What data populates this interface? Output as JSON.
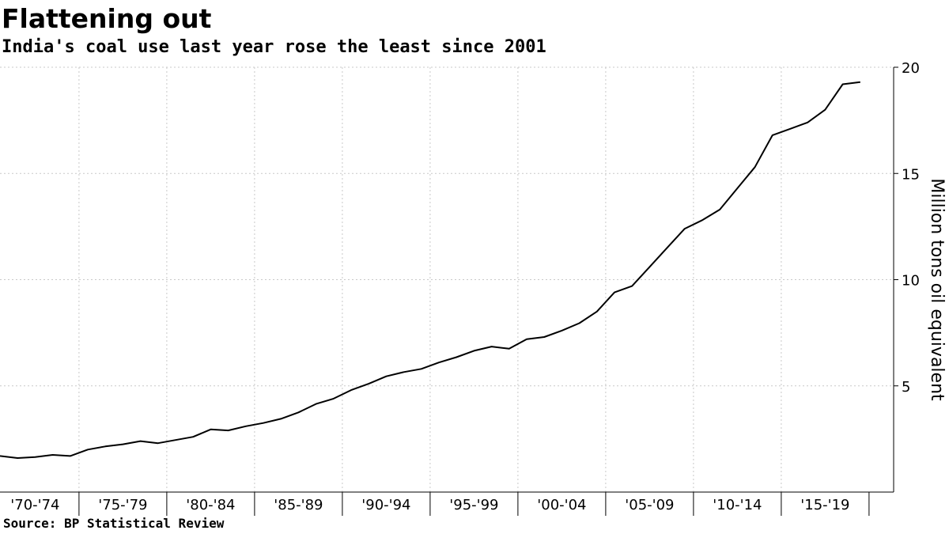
{
  "header": {
    "title": "Flattening out",
    "subtitle": "India's coal use last year rose the least since 2001"
  },
  "footer": {
    "source": "Source: BP Statistical Review"
  },
  "colors": {
    "line": "#000000",
    "grid": "#c8c8c8"
  },
  "chart_data": {
    "type": "line",
    "title": "Flattening out",
    "subtitle": "India's coal use last year rose the least since 2001",
    "xlabel": "",
    "ylabel": "Million tons oil equivalent",
    "x_range": [
      1970,
      2019
    ],
    "ylim": [
      0,
      20
    ],
    "yticks": [
      5,
      10,
      15,
      20
    ],
    "y_axis_side": "right",
    "grid": true,
    "legend": "none",
    "categories": [
      "'70-'74",
      "'75-'79",
      "'80-'84",
      "'85-'89",
      "'90-'94",
      "'95-'99",
      "'00-'04",
      "'05-'09",
      "'10-'14",
      "'15-'19"
    ],
    "series": [
      {
        "x": [
          1970,
          1971,
          1972,
          1973,
          1974,
          1975,
          1976,
          1977,
          1978,
          1979,
          1980,
          1981,
          1982,
          1983,
          1984,
          1985,
          1986,
          1987,
          1988,
          1989,
          1990,
          1991,
          1992,
          1993,
          1994,
          1995,
          1996,
          1997,
          1998,
          1999,
          2000,
          2001,
          2002,
          2003,
          2004,
          2005,
          2006,
          2007,
          2008,
          2009,
          2010,
          2011,
          2012,
          2013,
          2014,
          2015,
          2016,
          2017,
          2018,
          2019
        ],
        "values": [
          1.7,
          1.6,
          1.65,
          1.75,
          1.7,
          2.0,
          2.15,
          2.25,
          2.4,
          2.3,
          2.45,
          2.6,
          2.95,
          2.9,
          3.1,
          3.25,
          3.45,
          3.75,
          4.15,
          4.4,
          4.8,
          5.1,
          5.45,
          5.65,
          5.8,
          6.1,
          6.35,
          6.65,
          6.85,
          6.75,
          7.2,
          7.3,
          7.6,
          7.95,
          8.5,
          9.4,
          9.7,
          10.6,
          11.5,
          12.4,
          12.8,
          13.3,
          14.3,
          15.3,
          16.8,
          17.1,
          17.4,
          18.0,
          19.2,
          19.3
        ]
      }
    ]
  }
}
